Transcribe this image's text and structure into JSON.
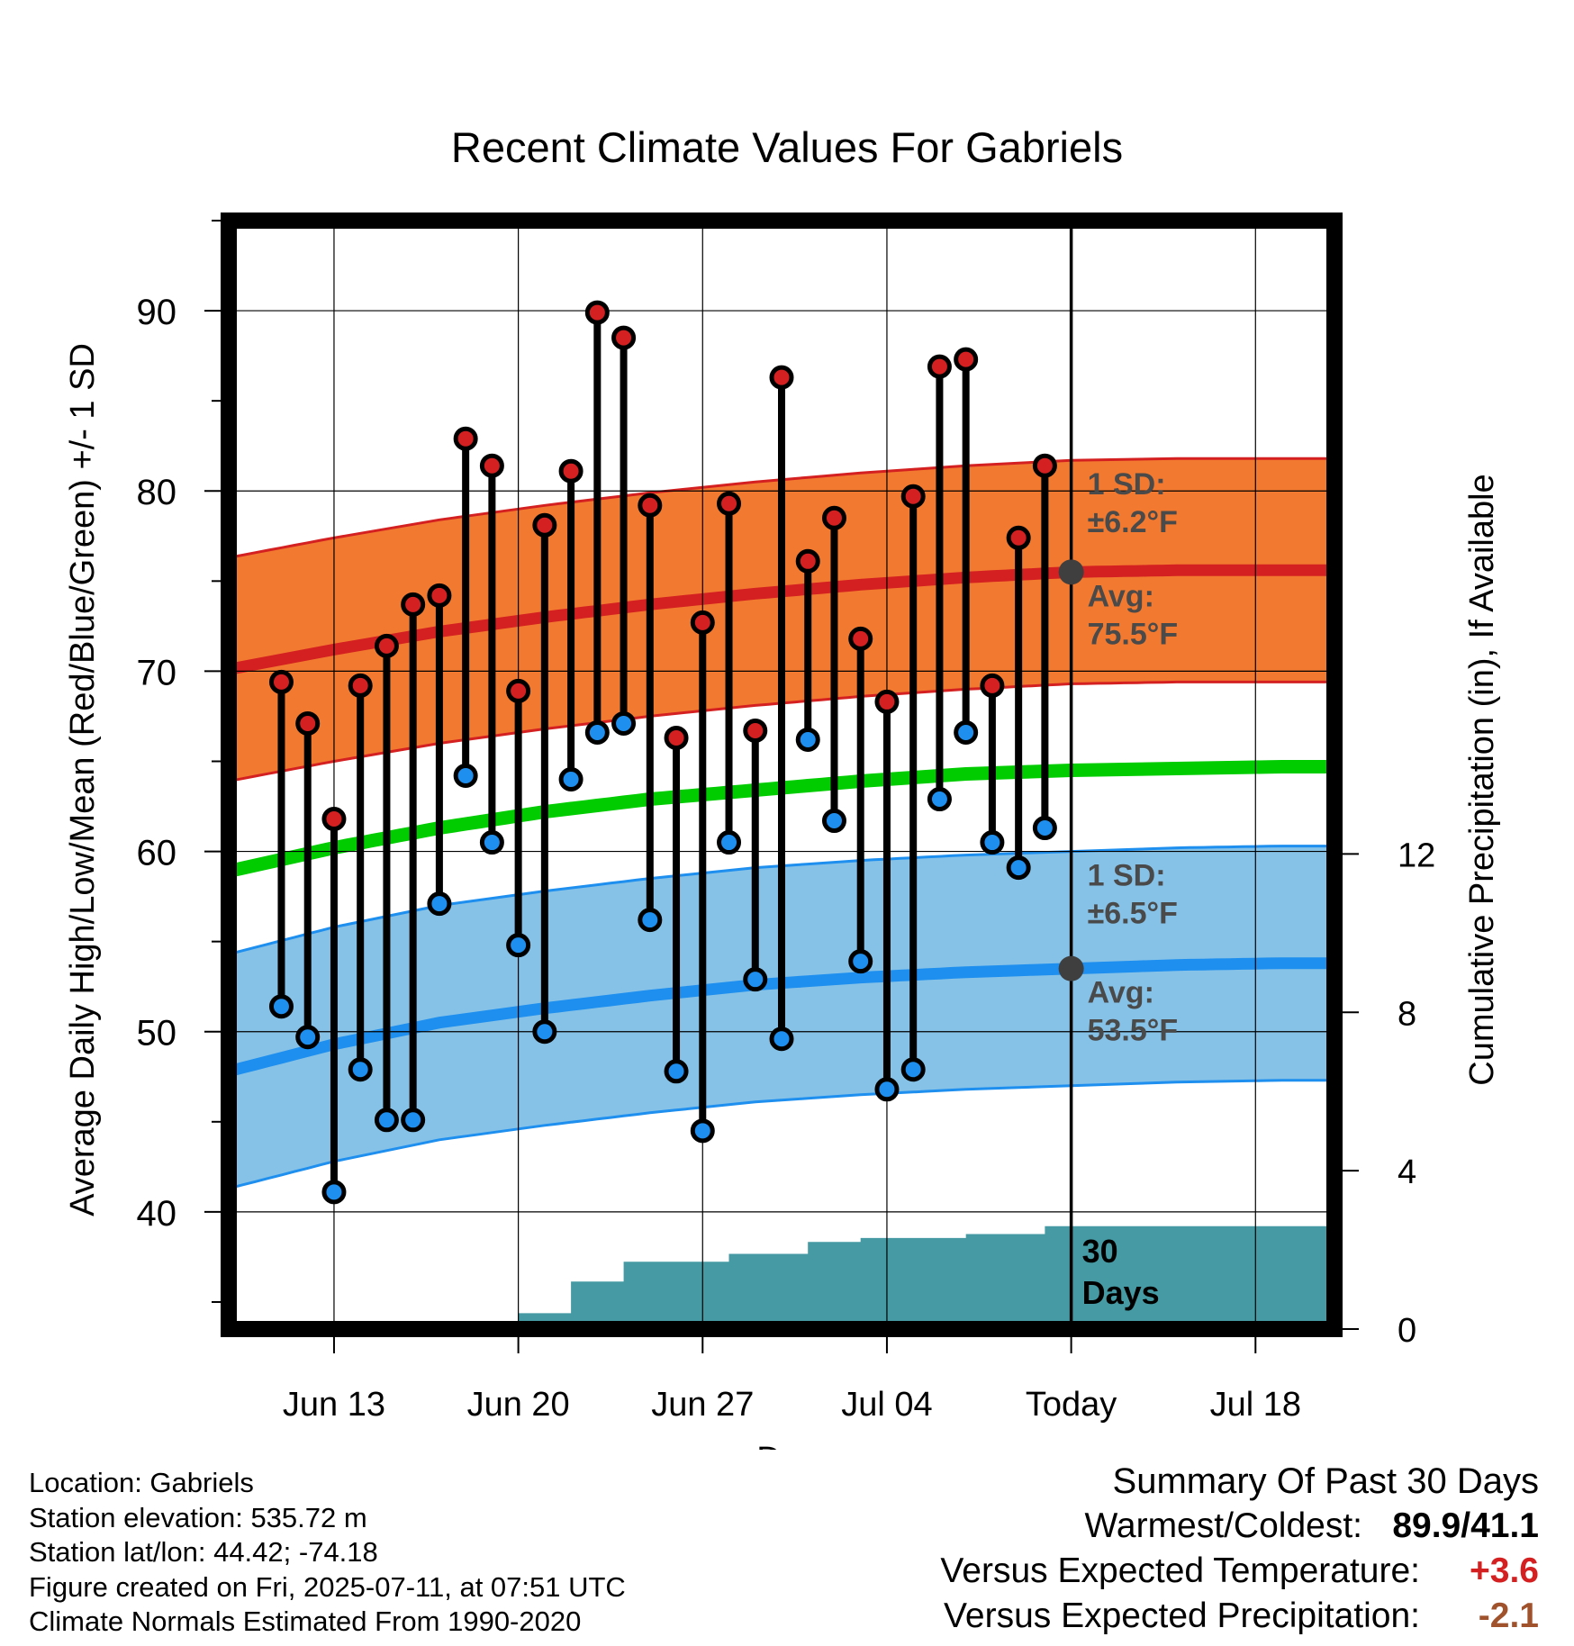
{
  "chart_data": {
    "type": "line",
    "title": "Recent Climate Values For Gabriels",
    "xlabel": "Day",
    "ylabel": "Average Daily High/Low/Mean (Red/Blue/Green) +/- 1 SD",
    "y2label": "Cumulative Precipitation (in), If Available",
    "x_tick_labels": [
      "Jun 13",
      "Jun 20",
      "Jun 27",
      "Jul 04",
      "Today",
      "Jul 18"
    ],
    "x_tick_days": [
      "2025-06-13",
      "2025-06-20",
      "2025-06-27",
      "2025-07-04",
      "2025-07-11",
      "2025-07-18"
    ],
    "xlim": [
      "2025-06-09",
      "2025-07-21"
    ],
    "today": "2025-07-11",
    "y_ticks": [
      40,
      50,
      60,
      70,
      80,
      90
    ],
    "ylim": [
      33.5,
      95
    ],
    "y2_ticks": [
      0,
      4,
      8,
      12
    ],
    "y2lim": [
      0,
      28
    ],
    "grid": true,
    "daily_observations": {
      "dates": [
        "2025-06-11",
        "2025-06-12",
        "2025-06-13",
        "2025-06-14",
        "2025-06-15",
        "2025-06-16",
        "2025-06-17",
        "2025-06-18",
        "2025-06-19",
        "2025-06-20",
        "2025-06-21",
        "2025-06-22",
        "2025-06-23",
        "2025-06-24",
        "2025-06-25",
        "2025-06-26",
        "2025-06-27",
        "2025-06-28",
        "2025-06-29",
        "2025-06-30",
        "2025-07-01",
        "2025-07-02",
        "2025-07-03",
        "2025-07-04",
        "2025-07-05",
        "2025-07-06",
        "2025-07-07",
        "2025-07-08",
        "2025-07-09",
        "2025-07-10"
      ],
      "high": [
        69.4,
        67.1,
        61.8,
        69.2,
        71.4,
        73.7,
        74.2,
        82.9,
        81.4,
        68.9,
        78.1,
        81.1,
        89.9,
        88.5,
        79.2,
        66.3,
        72.7,
        79.3,
        66.7,
        86.3,
        76.1,
        78.5,
        71.8,
        68.3,
        79.7,
        86.9,
        87.3,
        69.2,
        77.4,
        81.4
      ],
      "low": [
        51.4,
        49.7,
        41.1,
        47.9,
        45.1,
        45.1,
        57.1,
        64.2,
        60.5,
        54.8,
        50.0,
        64.0,
        66.6,
        67.1,
        56.2,
        47.8,
        44.5,
        60.5,
        52.9,
        49.6,
        66.2,
        61.7,
        53.9,
        46.8,
        47.9,
        62.9,
        66.6,
        60.5,
        59.1,
        61.3
      ]
    },
    "normals": {
      "dates": [
        "2025-06-09",
        "2025-06-13",
        "2025-06-17",
        "2025-06-21",
        "2025-06-25",
        "2025-06-29",
        "2025-07-03",
        "2025-07-07",
        "2025-07-11",
        "2025-07-15",
        "2025-07-19",
        "2025-07-21"
      ],
      "avg_high": [
        70.1,
        71.2,
        72.2,
        73.0,
        73.7,
        74.3,
        74.8,
        75.2,
        75.5,
        75.6,
        75.6,
        75.6
      ],
      "avg_low": [
        47.8,
        49.3,
        50.5,
        51.3,
        52.0,
        52.6,
        53.0,
        53.3,
        53.5,
        53.7,
        53.8,
        53.8
      ],
      "avg_mean": [
        58.9,
        60.2,
        61.3,
        62.2,
        62.9,
        63.4,
        63.9,
        64.3,
        64.5,
        64.6,
        64.7,
        64.7
      ],
      "high_sd": 6.2,
      "low_sd": 6.5
    },
    "cumulative_precipitation": {
      "dates": [
        "2025-06-20",
        "2025-06-21",
        "2025-06-22",
        "2025-06-23",
        "2025-06-24",
        "2025-06-25",
        "2025-06-26",
        "2025-06-27",
        "2025-06-28",
        "2025-06-29",
        "2025-06-30",
        "2025-07-01",
        "2025-07-02",
        "2025-07-03",
        "2025-07-04",
        "2025-07-05",
        "2025-07-06",
        "2025-07-07",
        "2025-07-08",
        "2025-07-09",
        "2025-07-10",
        "2025-07-11",
        "2025-07-21"
      ],
      "values": [
        0.4,
        0.4,
        1.2,
        1.2,
        1.7,
        1.7,
        1.7,
        1.7,
        1.9,
        1.9,
        1.9,
        2.2,
        2.2,
        2.3,
        2.3,
        2.3,
        2.3,
        2.4,
        2.4,
        2.4,
        2.6,
        2.6,
        2.6
      ]
    },
    "series_colors": {
      "high": "#d42020",
      "high_band": "#f27a30",
      "low": "#1e8fee",
      "low_band": "#86c2e8",
      "mean": "#00cc00",
      "precipitation": "#459aa3",
      "today_marker": "#3f3f3f"
    },
    "annotations": {
      "high_sd_label_1": "1 SD:",
      "high_sd_label_2": "±6.2°F",
      "high_avg_label_1": "Avg:",
      "high_avg_label_2": "75.5°F",
      "low_sd_label_1": "1 SD:",
      "low_sd_label_2": "±6.5°F",
      "low_avg_label_1": "Avg:",
      "low_avg_label_2": "53.5°F",
      "precip_label_1": "30",
      "precip_label_2": "Days"
    }
  },
  "info": {
    "location": "Location: Gabriels",
    "elevation": "Station elevation: 535.72 m",
    "latlon": "Station lat/lon: 44.42; -74.18",
    "created": "Figure created on Fri, 2025-07-11, at 07:51 UTC",
    "normals": "Climate Normals Estimated From 1990-2020"
  },
  "summary": {
    "title": "Summary Of Past 30 Days",
    "warmest_coldest_label": "Warmest/Coldest:",
    "warmest_coldest_value": "89.9/41.1",
    "temp_label": "Versus Expected Temperature:",
    "temp_value": "+3.6",
    "temp_color": "#d42020",
    "precip_label": "Versus Expected Precipitation:",
    "precip_value": "-2.1",
    "precip_color": "#a0522d"
  }
}
